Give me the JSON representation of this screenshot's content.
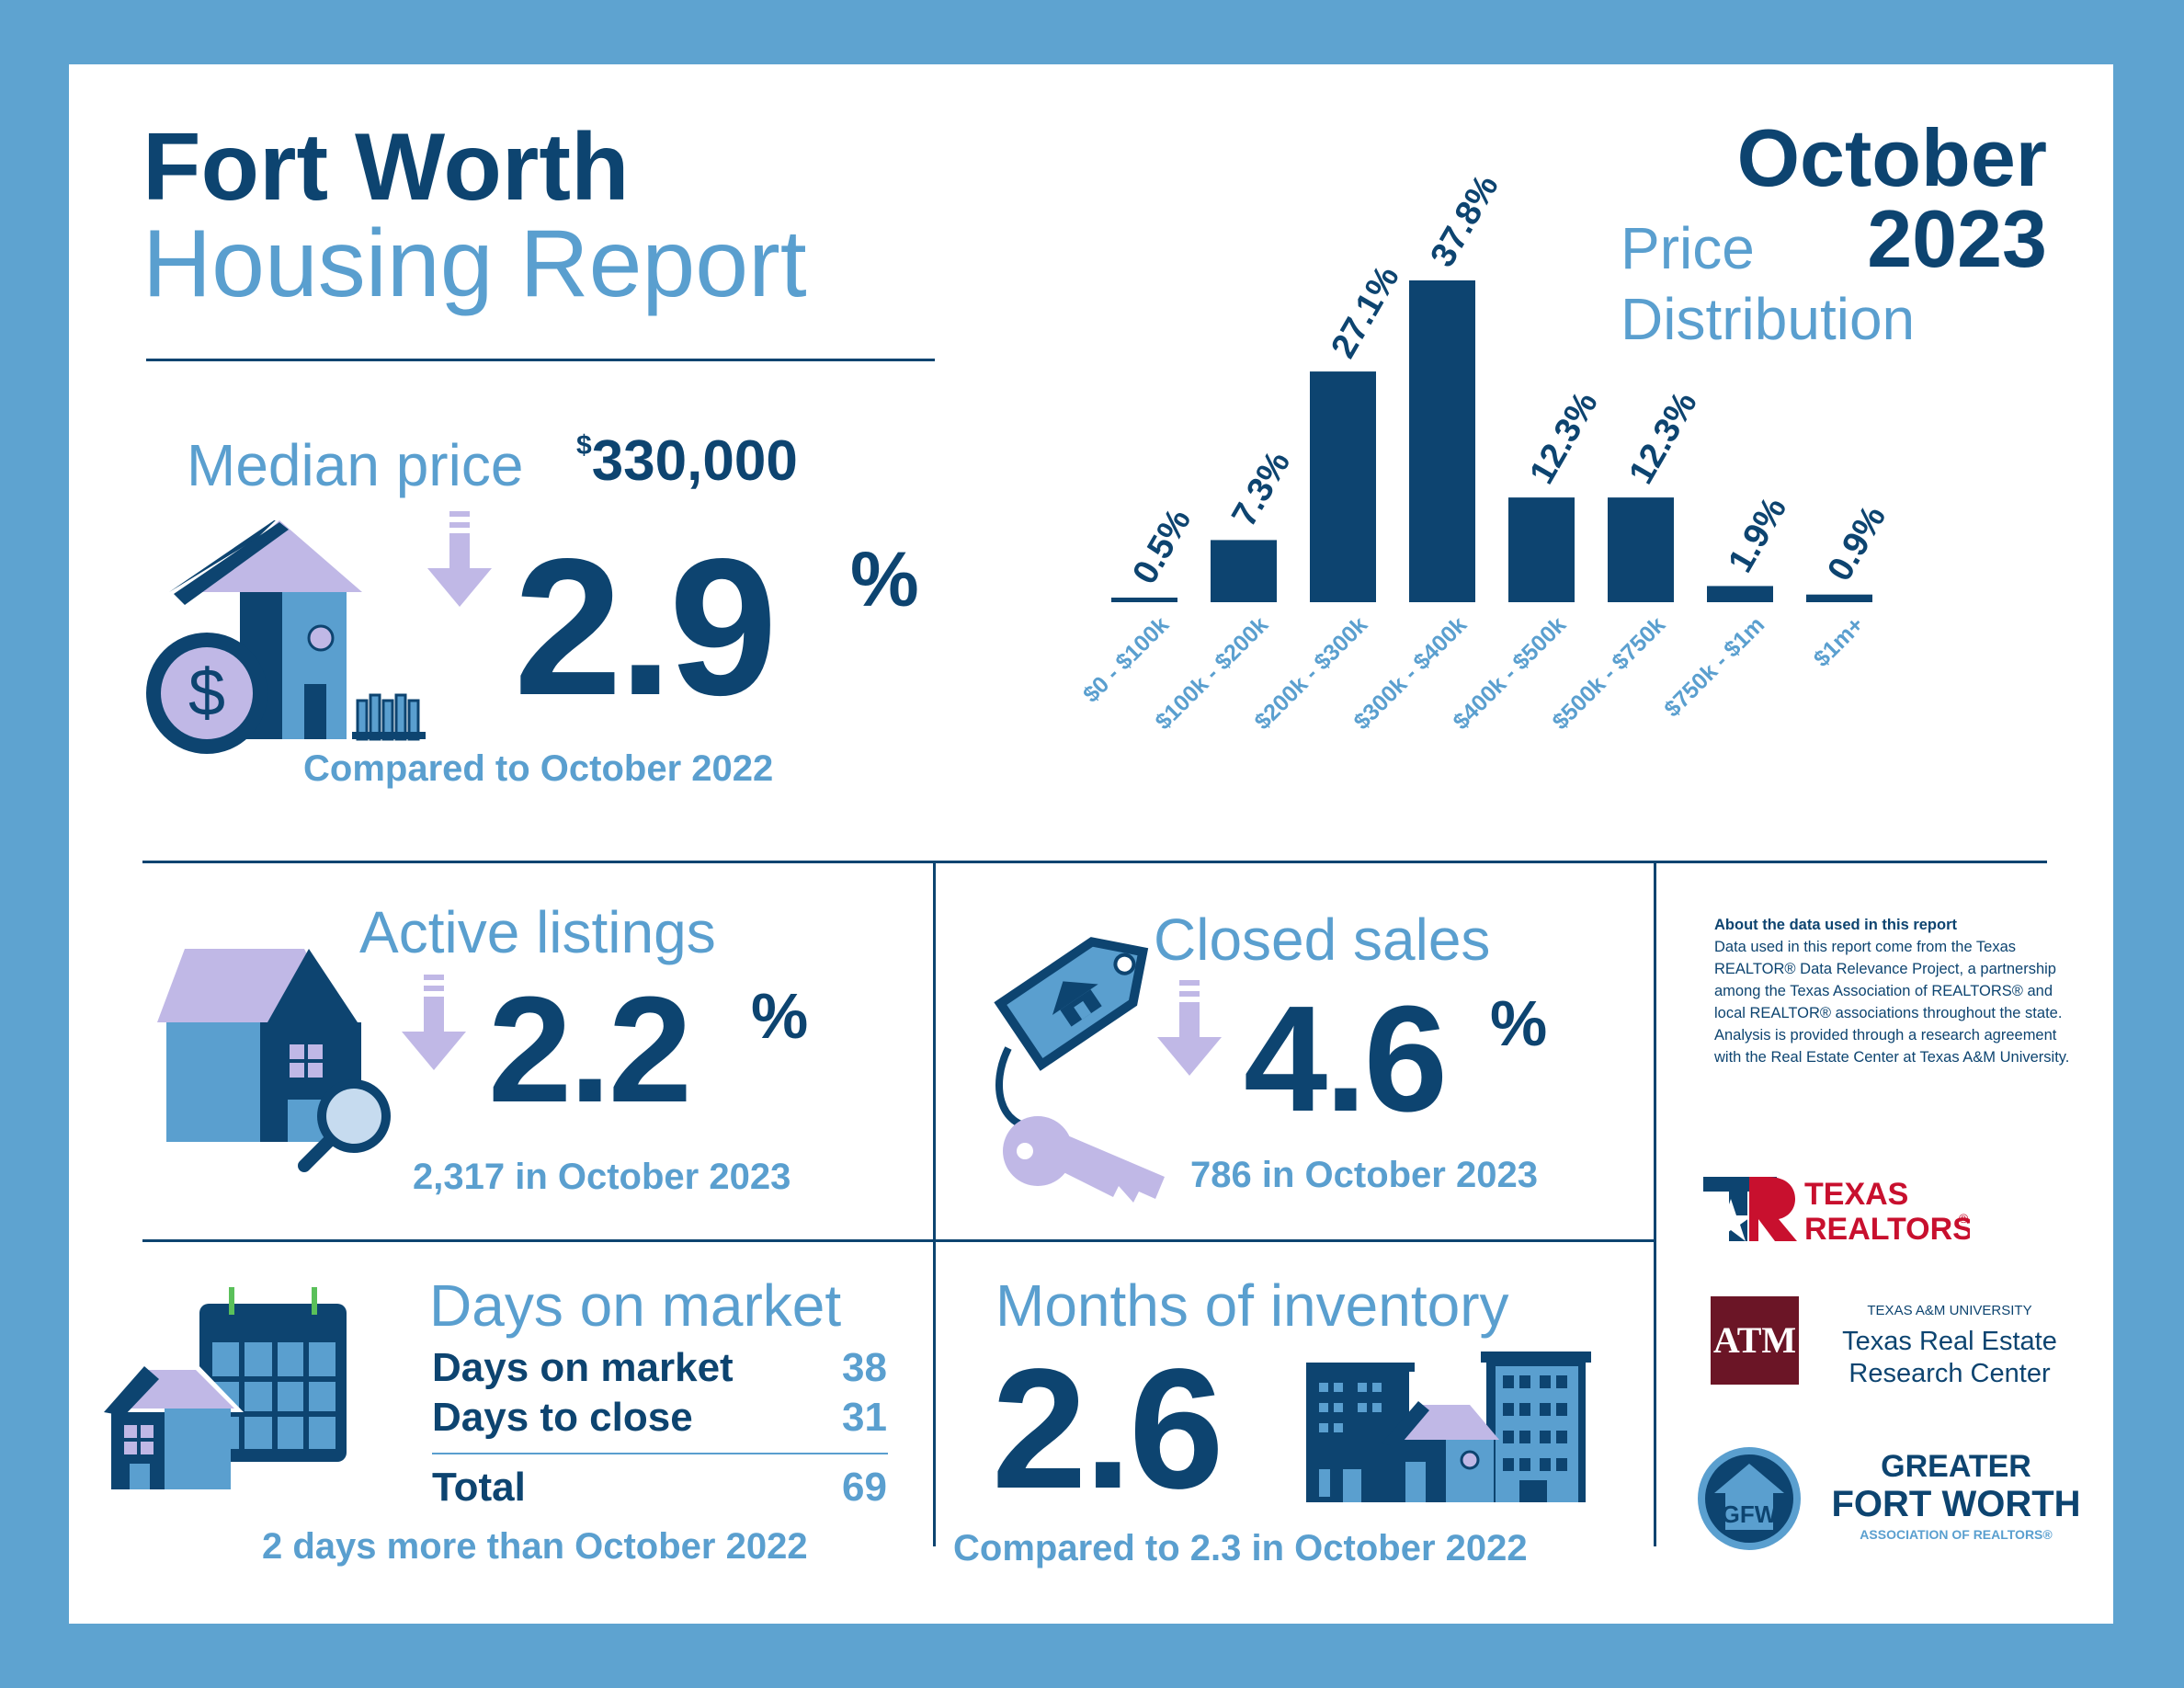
{
  "header": {
    "title_line1": "Fort Worth",
    "title_line2": "Housing Report",
    "month": "October",
    "year": "2023"
  },
  "median_price": {
    "label": "Median price",
    "currency": "$",
    "value": "330,000",
    "change": "2.9",
    "percent_sign": "%",
    "direction": "down",
    "comparison": "Compared to October 2022"
  },
  "price_distribution": {
    "title_line1": "Price",
    "title_line2": "Distribution"
  },
  "chart_data": {
    "type": "bar",
    "title": "Price Distribution",
    "categories": [
      "$0 - $100k",
      "$100k - $200k",
      "$200k - $300k",
      "$300k - $400k",
      "$400k - $500k",
      "$500k - $750k",
      "$750k - $1m",
      "$1m+"
    ],
    "values": [
      0.5,
      7.3,
      27.1,
      37.8,
      12.3,
      12.3,
      1.9,
      0.9
    ],
    "value_labels": [
      "0.5%",
      "7.3%",
      "27.1%",
      "37.8%",
      "12.3%",
      "12.3%",
      "1.9%",
      "0.9%"
    ],
    "ylim": [
      0,
      37.8
    ],
    "grid": false,
    "bar_color": "#0d4470",
    "label_color": "#5a9fcf"
  },
  "active_listings": {
    "label": "Active listings",
    "change": "2.2",
    "percent_sign": "%",
    "direction": "down",
    "detail": "2,317 in October 2023"
  },
  "closed_sales": {
    "label": "Closed sales",
    "change": "4.6",
    "percent_sign": "%",
    "direction": "down",
    "detail": "786 in October 2023"
  },
  "days_on_market": {
    "label": "Days on market",
    "rows": [
      {
        "label": "Days on market",
        "value": "38"
      },
      {
        "label": "Days to close",
        "value": "31"
      }
    ],
    "total_label": "Total",
    "total_value": "69",
    "comparison": "2 days more than October 2022"
  },
  "months_inventory": {
    "label": "Months of inventory",
    "value": "2.6",
    "comparison": "Compared to 2.3 in October 2022"
  },
  "about": {
    "heading": "About the data used in this report",
    "body": "Data used in this report come from the Texas REALTOR® Data Relevance Project, a partnership among the Texas Association of REALTORS® and local REALTOR® associations throughout the state. Analysis is provided through a research agreement with the Real Estate Center at Texas A&M University."
  },
  "logos": {
    "texas_realtors_line1": "TEXAS",
    "texas_realtors_line2": "REALTORS",
    "registered": "®",
    "tamu_university": "TEXAS A&M UNIVERSITY",
    "tamu_center_line1": "Texas Real Estate",
    "tamu_center_line2": "Research Center",
    "tamu_mark": "ATM",
    "gfw_line1": "GREATER",
    "gfw_line2": "FORT WORTH",
    "gfw_line3": "ASSOCIATION OF REALTORS®",
    "gfw_mark": "GFW"
  },
  "colors": {
    "navy": "#0d4470",
    "light_blue": "#5a9fcf",
    "lavender": "#c0b8e6",
    "border": "#5ea3d0",
    "maroon": "#6b1526",
    "red": "#c8102e"
  }
}
